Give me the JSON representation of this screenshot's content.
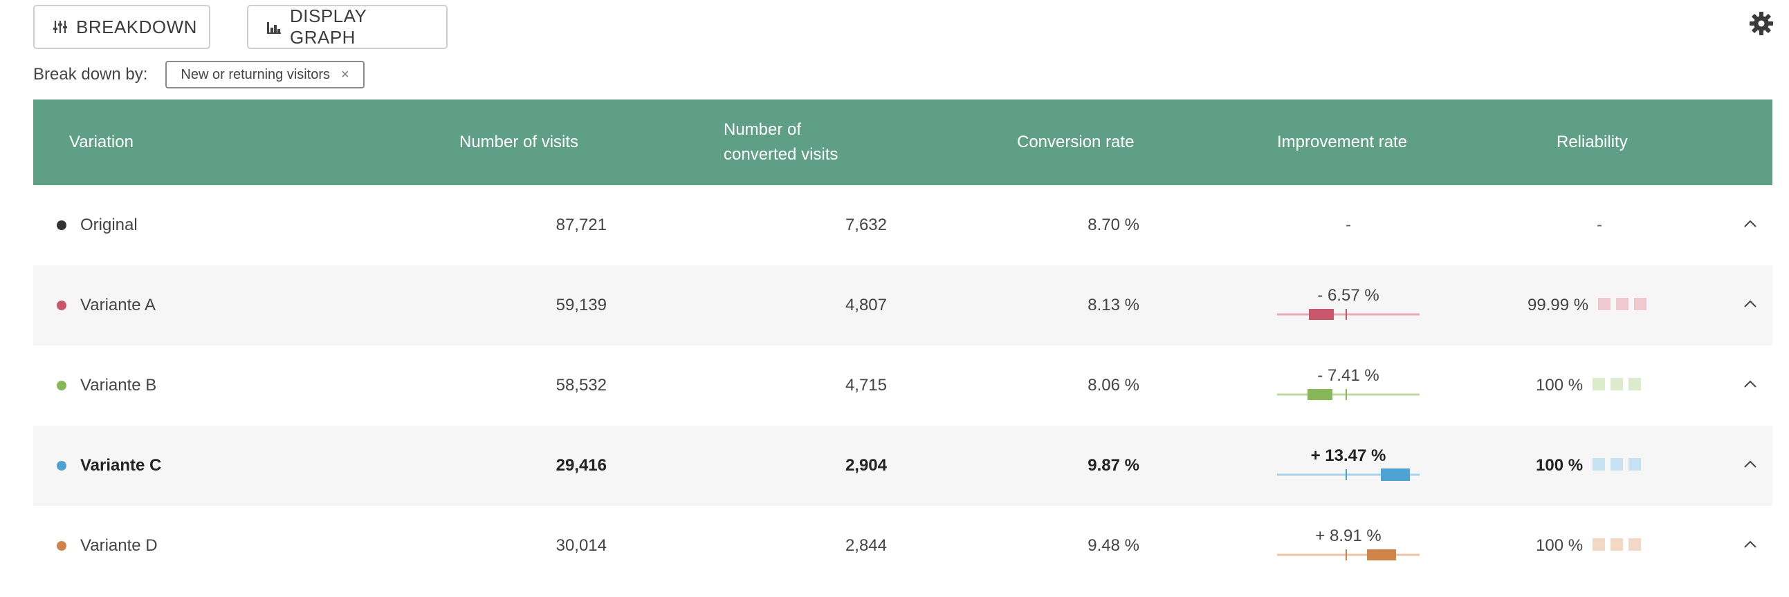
{
  "toolbar": {
    "breakdown_label": "BREAKDOWN",
    "display_graph_label": "DISPLAY GRAPH"
  },
  "breakdown": {
    "label": "Break down by:",
    "chip_label": "New or returning visitors",
    "chip_close": "×"
  },
  "table": {
    "headers": {
      "variation": "Variation",
      "visits": "Number of visits",
      "converted_line1": "Number of",
      "converted_line2": "converted visits",
      "rate": "Conversion rate",
      "improvement": "Improvement rate",
      "reliability": "Reliability"
    },
    "rows": [
      {
        "name": "Original",
        "visits": "87,721",
        "converted": "7,632",
        "rate": "8.70 %",
        "improvement": "-",
        "reliability": "-",
        "color": "#333333",
        "faint": "#dddddd"
      },
      {
        "name": "Variante A",
        "visits": "59,139",
        "converted": "4,807",
        "rate": "8.13 %",
        "improvement": "- 6.57 %",
        "reliability": "99.99 %",
        "color": "#c9566a",
        "faint": "#f0c9d0"
      },
      {
        "name": "Variante B",
        "visits": "58,532",
        "converted": "4,715",
        "rate": "8.06 %",
        "improvement": "- 7.41 %",
        "reliability": "100 %",
        "color": "#86b85a",
        "faint": "#dcebcc"
      },
      {
        "name": "Variante C",
        "visits": "29,416",
        "converted": "2,904",
        "rate": "9.87 %",
        "improvement": "+ 13.47 %",
        "reliability": "100 %",
        "color": "#4fa3d4",
        "faint": "#c6e2f2"
      },
      {
        "name": "Variante D",
        "visits": "30,014",
        "converted": "2,844",
        "rate": "9.48 %",
        "improvement": "+ 8.91 %",
        "reliability": "100 %",
        "color": "#d0844a",
        "faint": "#f2d8c5"
      }
    ]
  },
  "icons": {
    "breakdown": "sliders-icon",
    "display_graph": "bar-chart-icon",
    "settings": "gear-icon",
    "collapse": "chevron-up-icon"
  }
}
